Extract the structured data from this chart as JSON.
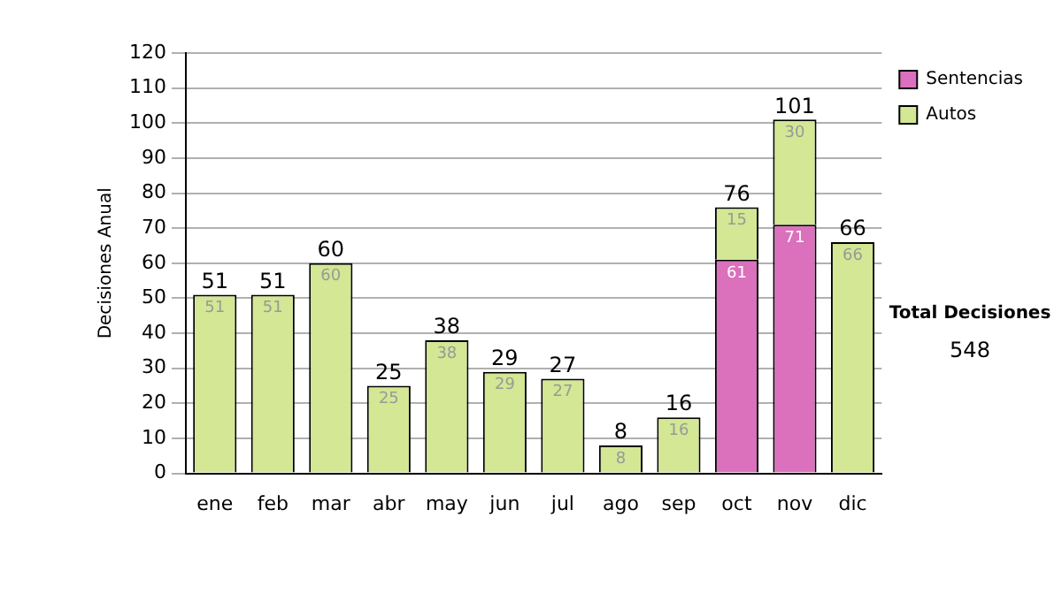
{
  "chart_data": {
    "type": "bar",
    "stacked": true,
    "ylabel": "Decisiones Anual",
    "categories": [
      "ene",
      "feb",
      "mar",
      "abr",
      "may",
      "jun",
      "jul",
      "ago",
      "sep",
      "oct",
      "nov",
      "dic"
    ],
    "series": [
      {
        "name": "Sentencias",
        "color": "#db70bd",
        "values": [
          null,
          null,
          null,
          null,
          null,
          null,
          null,
          null,
          null,
          61,
          71,
          null
        ]
      },
      {
        "name": "Autos",
        "color": "#d3e794",
        "values": [
          51,
          51,
          60,
          25,
          38,
          29,
          27,
          8,
          16,
          15,
          30,
          66
        ]
      }
    ],
    "totals": [
      "51",
      "51",
      "60",
      "25",
      "38",
      "29",
      "27",
      "8",
      "16",
      "76",
      "101",
      "66"
    ],
    "data_labels": true,
    "ylim": [
      0,
      120
    ],
    "yticks": [
      0,
      10,
      20,
      30,
      40,
      50,
      60,
      70,
      80,
      90,
      100,
      110,
      120
    ],
    "grid": "y",
    "legend": "right",
    "annotations": [
      "Total Decisiones",
      "548"
    ]
  }
}
